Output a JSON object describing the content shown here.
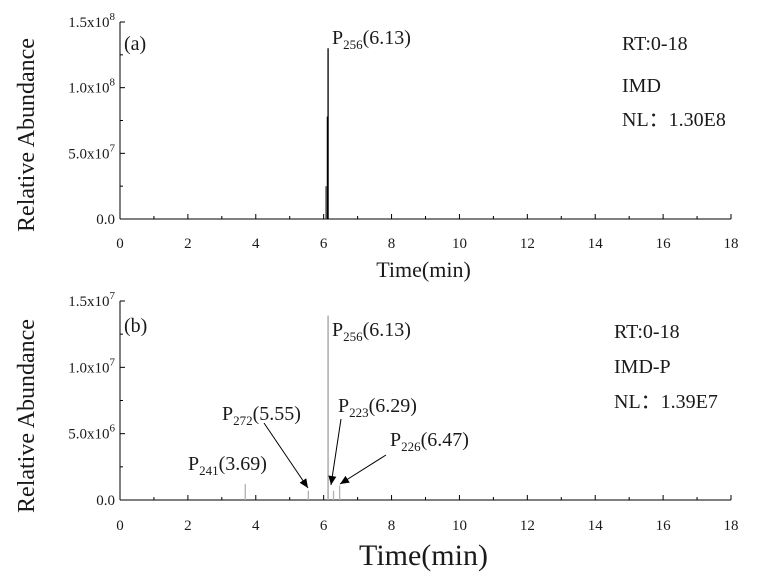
{
  "chart_data": [
    {
      "type": "line",
      "panel_label": "(a)",
      "xlabel": "Time(min)",
      "ylabel": "Relative Abundance",
      "xlim": [
        0,
        18
      ],
      "ylim": [
        0,
        150000000
      ],
      "x_ticks": [
        "0",
        "2",
        "4",
        "6",
        "8",
        "10",
        "12",
        "14",
        "16",
        "18"
      ],
      "y_ticks": [
        {
          "value": 0,
          "mantissa": "0.0",
          "exp": ""
        },
        {
          "value": 50000000,
          "mantissa": "5.0x10",
          "exp": "7"
        },
        {
          "value": 100000000,
          "mantissa": "1.0x10",
          "exp": "8"
        },
        {
          "value": 150000000,
          "mantissa": "1.5x10",
          "exp": "8"
        }
      ],
      "info": [
        "RT:0-18",
        "IMD",
        "NL：1.30E8"
      ],
      "peaks": [
        {
          "x": 6.07,
          "y": 25000000,
          "color": "#444444"
        },
        {
          "x": 6.11,
          "y": 78000000,
          "color": "#000000"
        },
        {
          "x": 6.13,
          "y": 130000000,
          "color": "#000000"
        }
      ],
      "annotations": [
        {
          "prefix": "P",
          "sub": "256",
          "suffix": "(6.13)"
        }
      ],
      "grid": false
    },
    {
      "type": "line",
      "panel_label": "(b)",
      "xlabel": "Time(min)",
      "ylabel": "Relative Abundance",
      "xlim": [
        0,
        18
      ],
      "ylim": [
        0,
        15000000
      ],
      "x_ticks": [
        "0",
        "2",
        "4",
        "6",
        "8",
        "10",
        "12",
        "14",
        "16",
        "18"
      ],
      "y_ticks": [
        {
          "value": 0,
          "mantissa": "0.0",
          "exp": ""
        },
        {
          "value": 5000000,
          "mantissa": "5.0x10",
          "exp": "6"
        },
        {
          "value": 10000000,
          "mantissa": "1.0x10",
          "exp": "7"
        },
        {
          "value": 15000000,
          "mantissa": "1.5x10",
          "exp": "7"
        }
      ],
      "info": [
        "RT:0-18",
        "IMD-P",
        "NL：1.39E7"
      ],
      "peaks": [
        {
          "x": 3.69,
          "y": 1200000,
          "color": "#b0b0b0"
        },
        {
          "x": 5.55,
          "y": 700000,
          "color": "#b0b0b0"
        },
        {
          "x": 6.13,
          "y": 13900000,
          "color": "#a0a0a0"
        },
        {
          "x": 6.29,
          "y": 700000,
          "color": "#b0b0b0"
        },
        {
          "x": 6.47,
          "y": 1100000,
          "color": "#b0b0b0"
        }
      ],
      "annotations": [
        {
          "prefix": "P",
          "sub": "241",
          "suffix": "(3.69)"
        },
        {
          "prefix": "P",
          "sub": "272",
          "suffix": "(5.55)"
        },
        {
          "prefix": "P",
          "sub": "256",
          "suffix": "(6.13)"
        },
        {
          "prefix": "P",
          "sub": "223",
          "suffix": "(6.29)"
        },
        {
          "prefix": "P",
          "sub": "226",
          "suffix": "(6.47)"
        }
      ],
      "grid": false
    }
  ]
}
